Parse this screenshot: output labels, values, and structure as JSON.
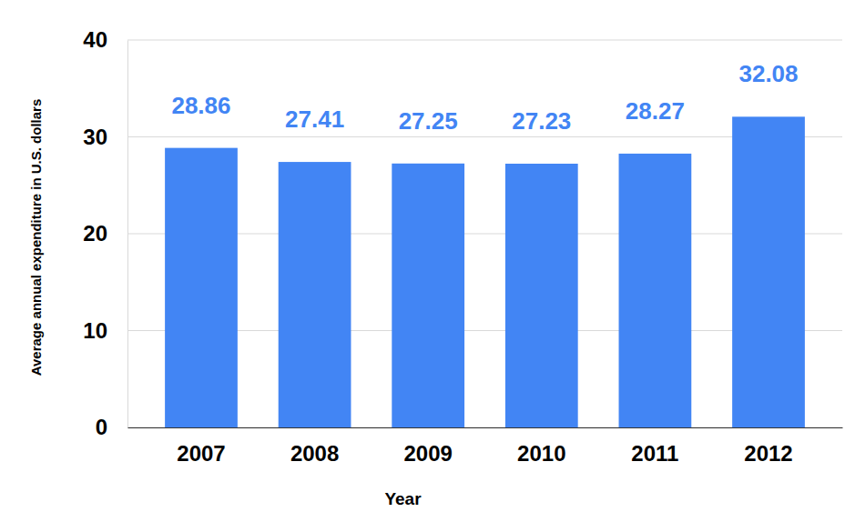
{
  "chart_data": {
    "type": "bar",
    "x_label": "Year",
    "y_label": "Average annual expenditure in U.S. dollars",
    "categories": [
      "2007",
      "2008",
      "2009",
      "2010",
      "2011",
      "2012"
    ],
    "values": [
      28.86,
      27.41,
      27.25,
      27.23,
      28.27,
      32.08
    ],
    "color": "#4285f4",
    "ylim": [
      0,
      40
    ],
    "yticks": [
      0,
      10,
      20,
      30,
      40
    ],
    "grid": true,
    "data_labels": true
  }
}
